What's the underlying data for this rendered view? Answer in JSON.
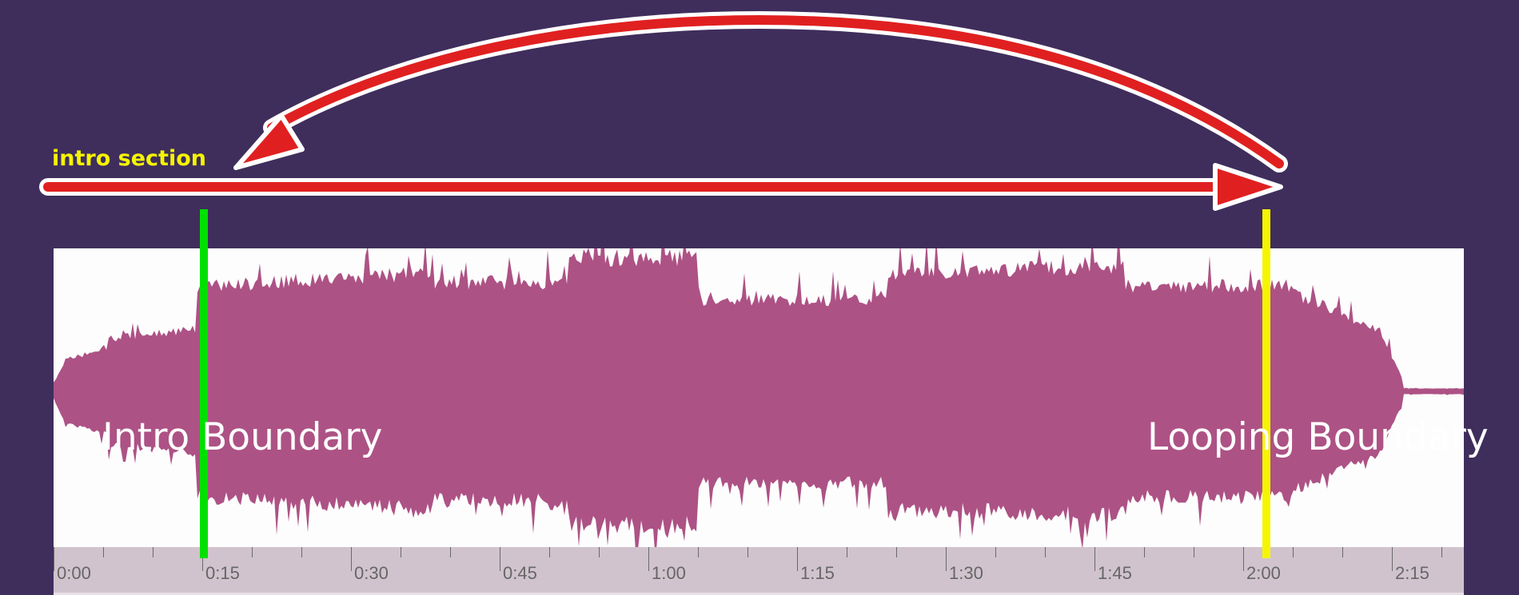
{
  "labels": {
    "intro_section": "intro section",
    "intro_boundary": "Intro Boundary",
    "looping_boundary": "Looping Boundary"
  },
  "timeline": {
    "ticks": [
      "0:00",
      "0:15",
      "0:30",
      "0:45",
      "1:00",
      "1:15",
      "1:30",
      "1:45",
      "2:00",
      "2:15"
    ],
    "major_interval_seconds": 15,
    "minor_interval_seconds": 5
  },
  "markers": {
    "intro_boundary_time_seconds": 15.2,
    "looping_boundary_time_seconds": 122.3
  },
  "colors": {
    "background": "#3f2e5c",
    "waveform": "#ad5285",
    "intro_marker": "#00e000",
    "loop_marker": "#f5f500",
    "arrow": "#e02020",
    "timeline": "#d0c3cd"
  }
}
